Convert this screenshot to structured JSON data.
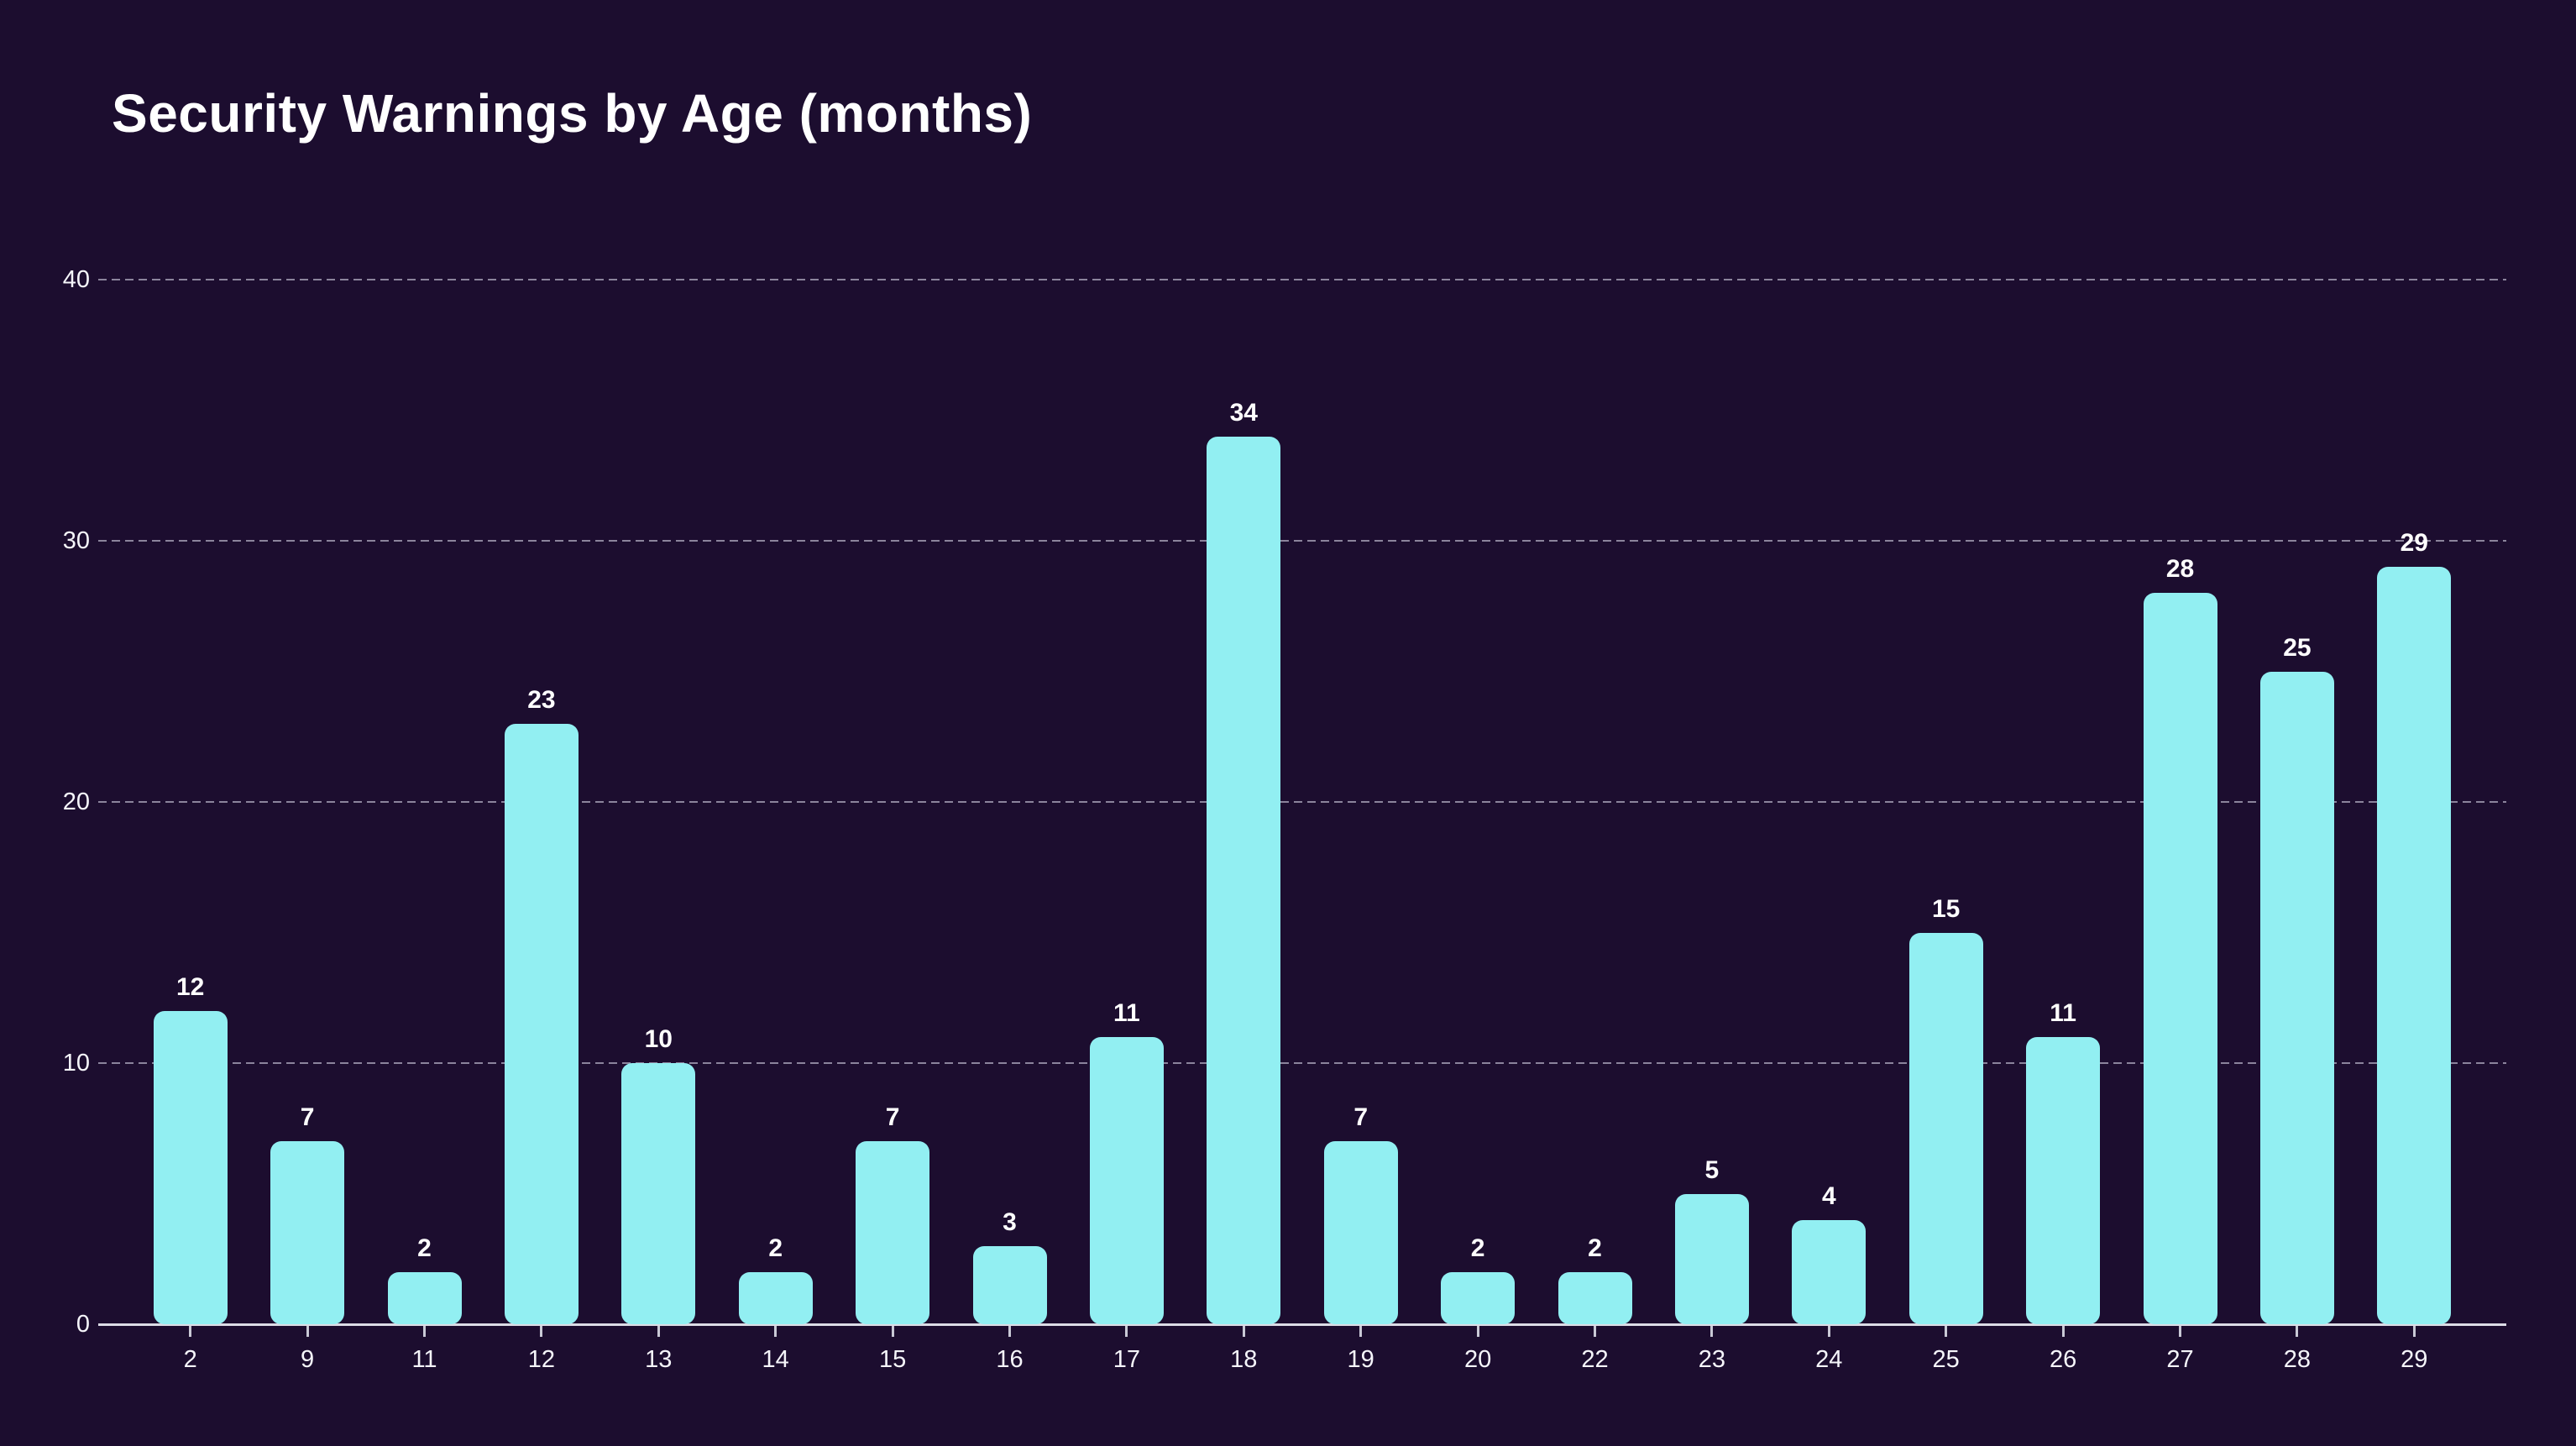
{
  "chart_data": {
    "type": "bar",
    "title": "Security Warnings by Age (months)",
    "categories": [
      "2",
      "9",
      "11",
      "12",
      "13",
      "14",
      "15",
      "16",
      "17",
      "18",
      "19",
      "20",
      "22",
      "23",
      "24",
      "25",
      "26",
      "27",
      "28",
      "29"
    ],
    "values": [
      12,
      7,
      2,
      23,
      10,
      2,
      7,
      3,
      11,
      34,
      7,
      2,
      2,
      5,
      4,
      15,
      11,
      28,
      25,
      29
    ],
    "xlabel": "",
    "ylabel": "",
    "ylim": [
      0,
      40
    ],
    "yticks": [
      0,
      10,
      20,
      30,
      40
    ],
    "grid": "horizontal-dashed",
    "legend_position": "none",
    "value_labels_shown": true,
    "colors": {
      "background": "#1c0d2f",
      "bar_fill": "#92eff2",
      "gridline": "#c7c4d6",
      "axis_line": "#dcdce6",
      "tick_mark": "#c9c9d6",
      "label_text": "#f5f5fa",
      "value_label_text": "#ffffff",
      "title_text": "#ffffff"
    }
  }
}
